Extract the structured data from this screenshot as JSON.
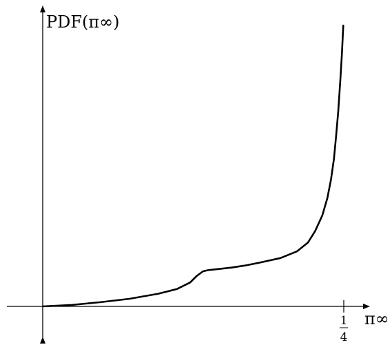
{
  "chart_data": {
    "type": "line",
    "ylabel": "PDF(π∞)",
    "xlabel": "π∞",
    "x_ticks": [
      {
        "value": 0.25,
        "numerator": "1",
        "denominator": "4"
      }
    ],
    "xlim": [
      0,
      0.267
    ],
    "ylim": [
      -0.11,
      1.0
    ],
    "grid": false,
    "series": [
      {
        "x": [
          0,
          0.024,
          0.048,
          0.072,
          0.096,
          0.1116,
          0.1224,
          0.1278,
          0.1332,
          0.1374,
          0.1416,
          0.1482,
          0.1566,
          0.1674,
          0.1794,
          0.1974,
          0.2112,
          0.2202,
          0.2262,
          0.2322,
          0.2364,
          0.2394,
          0.2418,
          0.2436,
          0.2454,
          0.2472,
          0.2484,
          0.2496
        ],
        "y": [
          0,
          0.005,
          0.015,
          0.027,
          0.045,
          0.062,
          0.085,
          0.108,
          0.125,
          0.129,
          0.131,
          0.134,
          0.138,
          0.145,
          0.155,
          0.172,
          0.196,
          0.227,
          0.268,
          0.324,
          0.386,
          0.452,
          0.524,
          0.605,
          0.694,
          0.81,
          0.895,
          1.0
        ]
      }
    ]
  }
}
